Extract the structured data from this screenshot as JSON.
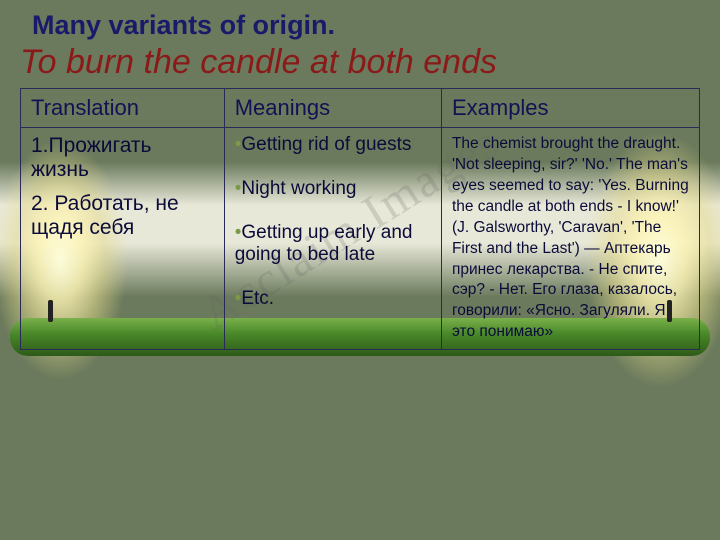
{
  "heading": "Many variants of origin.",
  "subheading": "To burn the candle at both ends",
  "columns": {
    "c1": "Translation",
    "c2": "Meanings",
    "c3": "Examples"
  },
  "translation": {
    "item1": "1.Прожигать жизнь",
    "item2": "2. Работать, не щадя себя"
  },
  "meanings": {
    "m1": "Getting rid of guests",
    "m2": "Night working",
    "m3": "Getting up early and going to bed late",
    "m4": "Etc."
  },
  "example": "The chemist brought the draught. 'Not sleeping, sir?' 'No.' The man's eyes seemed to say: 'Yes. Burning the candle at both ends - I know!' (J. Galsworthy, 'Caravan', 'The First and the Last') — Аптекарь принес лекарства. - Не спите, сэр? - Нет. Его глаза, казалось, говорили: «Ясно. Загуляли. Я это понимаю»",
  "watermark": "Acclaim Images",
  "style": {
    "heading_color": "#1a1a6a",
    "subheading_color": "#8a1a1a",
    "border_color": "#2a2a5a",
    "bullet_color": "#7a9a4a",
    "candle_color": "#4a8a2a",
    "bg_olive": "#6b7a5c",
    "bg_light": "#e8e8d8",
    "heading_fontsize": 27,
    "subheading_fontsize": 34,
    "th_fontsize": 22,
    "translation_fontsize": 21,
    "meanings_fontsize": 19,
    "examples_fontsize": 15.5
  }
}
